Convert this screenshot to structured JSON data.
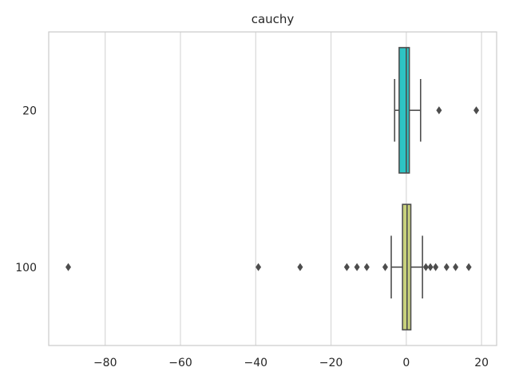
{
  "chart_data": {
    "type": "boxplot",
    "orientation": "horizontal",
    "title": "cauchy",
    "xlabel": "",
    "ylabel": "",
    "xlim": [
      -95,
      24
    ],
    "xticks": [
      -80,
      -60,
      -40,
      -20,
      0,
      20
    ],
    "xtick_labels": [
      "−80",
      "−60",
      "−40",
      "−20",
      "0",
      "20"
    ],
    "grid": "vertical",
    "categories": [
      "20",
      "100"
    ],
    "boxes": [
      {
        "label": "20",
        "color": "#2ec4c4",
        "whisker_low": -3.1,
        "q1": -1.9,
        "median": 0.0,
        "q3": 0.8,
        "whisker_high": 3.8,
        "outliers": [
          8.7,
          18.6
        ]
      },
      {
        "label": "100",
        "color": "#c8d17c",
        "whisker_low": -4.0,
        "q1": -1.0,
        "median": 0.2,
        "q3": 1.2,
        "whisker_high": 4.3,
        "outliers": [
          -89.8,
          -39.3,
          -28.2,
          -15.8,
          -13.1,
          -10.5,
          -5.6,
          5.2,
          6.4,
          7.8,
          10.7,
          13.1,
          16.6
        ]
      }
    ],
    "colors": {
      "whisker": "#4d4d4d",
      "grid": "#d9d9d9",
      "spine": "#cccccc",
      "text": "#262626"
    }
  }
}
